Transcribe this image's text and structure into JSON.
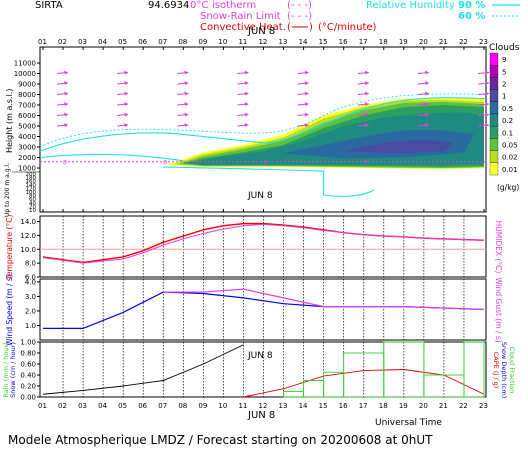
{
  "header": {
    "site": "SIRTA",
    "coord": "94.6934",
    "legend_isotherm": "0°C Isotherm",
    "legend_isotherm_text_a": "0°C",
    "legend_isotherm_text_b": "isotherm",
    "legend_snowrain": "Snow-Rain Limit",
    "legend_convective": "Convective Heat.",
    "legend_convective_unit": "(°C/minute)",
    "legend_rh": "Relative Humidity",
    "rh_90": "90 %",
    "rh_60": "60 %",
    "colors": {
      "isotherm": "#e040e0",
      "snowrain": "#e040e0",
      "convective": "#e00000",
      "rh": "#20e0e0"
    }
  },
  "footer": {
    "title": "Modele Atmospherique LMDZ / Forecast starting on 20200608 at 0hUT",
    "universal_time": "Universal Time",
    "date_label": "JUN  8"
  },
  "hours": [
    "01",
    "02",
    "03",
    "04",
    "05",
    "06",
    "07",
    "08",
    "09",
    "10",
    "11",
    "12",
    "13",
    "14",
    "15",
    "16",
    "17",
    "18",
    "19",
    "20",
    "21",
    "22",
    "23"
  ],
  "hours_bottom": [
    "01",
    "02",
    "03",
    "04",
    "05",
    "06",
    "07",
    "08",
    "09",
    "10",
    "11",
    "12",
    "13",
    "14",
    "15",
    "16",
    "17",
    "18",
    "19",
    "20",
    "21",
    "22",
    "23"
  ],
  "chart_data": [
    {
      "type": "heatmap",
      "name": "clouds",
      "ylabel": "Height (m a.s.l.)",
      "ylabel2": "Up to 200 m a.g.l.",
      "yticks_upper": [
        11000,
        10000,
        9000,
        8000,
        7000,
        6000,
        5000,
        4000,
        3000,
        2000,
        1000
      ],
      "yticks_lower": [
        200,
        180,
        160,
        140,
        120,
        100,
        80,
        60,
        40,
        20,
        10
      ],
      "colorbar_title": "Clouds",
      "colorbar_unit": "(g/kg)",
      "colorbar_ticks": [
        "9",
        "5",
        "2",
        "1",
        "0.5",
        "0.2",
        "0.1",
        "0.05",
        "0.02",
        "0.01"
      ],
      "colorbar_colors": [
        "#ff00ff",
        "#b000b0",
        "#6a2a9a",
        "#4a4aa0",
        "#2a6aa0",
        "#1f8a80",
        "#2aa060",
        "#60c040",
        "#b8e020",
        "#ffff30"
      ],
      "date_label": "JUN 8",
      "isotherm_height_m": 1600,
      "isotherm_labels": [
        "0",
        "0",
        "0",
        "0"
      ]
    },
    {
      "type": "line",
      "name": "temperature",
      "ylabel": "Temperature (°C)",
      "ylabel_right": "HUMIDEX (°C)",
      "yticks": [
        "14.0",
        "12.0",
        "10.0",
        "8.0",
        "6.0"
      ],
      "ylim": [
        6,
        14.8
      ],
      "x": [
        1,
        2,
        3,
        4,
        5,
        6,
        7,
        8,
        9,
        10,
        11,
        12,
        13,
        14,
        15,
        16,
        17,
        18,
        19,
        20,
        21,
        22,
        23
      ],
      "series": [
        {
          "name": "Temperature",
          "color": "#ff0000",
          "values": [
            8.9,
            8.5,
            8.1,
            8.5,
            8.9,
            9.8,
            11.0,
            11.9,
            12.8,
            13.4,
            13.7,
            13.7,
            13.5,
            13.2,
            12.8,
            12.4,
            12.1,
            11.9,
            11.8,
            11.6,
            11.5,
            11.4,
            11.3
          ]
        },
        {
          "name": "Humidex",
          "color": "#e040e0",
          "values": [
            8.8,
            8.4,
            8.0,
            8.3,
            8.6,
            9.5,
            10.6,
            11.5,
            12.3,
            12.9,
            13.4,
            13.6,
            13.4,
            13.1,
            12.7,
            12.4,
            12.1,
            11.9,
            11.8,
            11.6,
            11.5,
            11.4,
            11.3
          ]
        }
      ],
      "reference_line": 10.0
    },
    {
      "type": "line",
      "name": "wind",
      "ylabel": "Wind Speed (m / s)",
      "ylabel_right": "Wind Gust (m / s)",
      "yticks": [
        "4.0",
        "3.0",
        "2.0",
        "1.0"
      ],
      "ylim": [
        0,
        4.2
      ],
      "x": [
        1,
        3,
        5,
        7,
        9,
        11,
        13,
        15,
        17,
        19,
        21,
        23
      ],
      "series": [
        {
          "name": "Wind Speed",
          "color": "#0000ff",
          "values": [
            0.8,
            0.8,
            1.9,
            3.3,
            3.2,
            2.9,
            2.5,
            2.3,
            2.3,
            2.3,
            2.2,
            2.1
          ]
        },
        {
          "name": "Wind Gust",
          "color": "#e040e0",
          "values": [
            null,
            null,
            null,
            3.3,
            3.3,
            3.5,
            2.9,
            2.3,
            2.3,
            2.3,
            2.2,
            2.1
          ]
        }
      ]
    },
    {
      "type": "line",
      "name": "precip",
      "ylabel_left": "Rain (mm / hour)",
      "ylabel_left2": "Snow (cm / hour)",
      "ylabel_right": "CAPE (J / g)",
      "ylabel_right2": "Snow Depth (cm)",
      "ylabel_right3": "Cloud Fraction",
      "yticks": [
        "1.00",
        "0.80",
        "0.60",
        "0.40",
        "0.20",
        "0.00"
      ],
      "ylim": [
        0,
        1.0
      ],
      "series": [
        {
          "name": "Cumul",
          "color": "#000000",
          "x": [
            1,
            3,
            5,
            7,
            9,
            11
          ],
          "values": [
            0.05,
            0.12,
            0.2,
            0.3,
            0.6,
            0.95
          ]
        },
        {
          "name": "CAPE",
          "color": "#e00000",
          "x": [
            11,
            13,
            15,
            17,
            19,
            21,
            23
          ],
          "values": [
            0.0,
            0.15,
            0.38,
            0.48,
            0.5,
            0.4,
            0.05
          ]
        },
        {
          "name": "Cloud Fraction",
          "color": "#30d030",
          "steps": [
            [
              13,
              14,
              0.1
            ],
            [
              14,
              15,
              0.3
            ],
            [
              15,
              16,
              0.45
            ],
            [
              16,
              18,
              0.8
            ],
            [
              18,
              20,
              1.0
            ],
            [
              20,
              22,
              0.4
            ],
            [
              22,
              23,
              1.0
            ]
          ]
        }
      ]
    }
  ]
}
